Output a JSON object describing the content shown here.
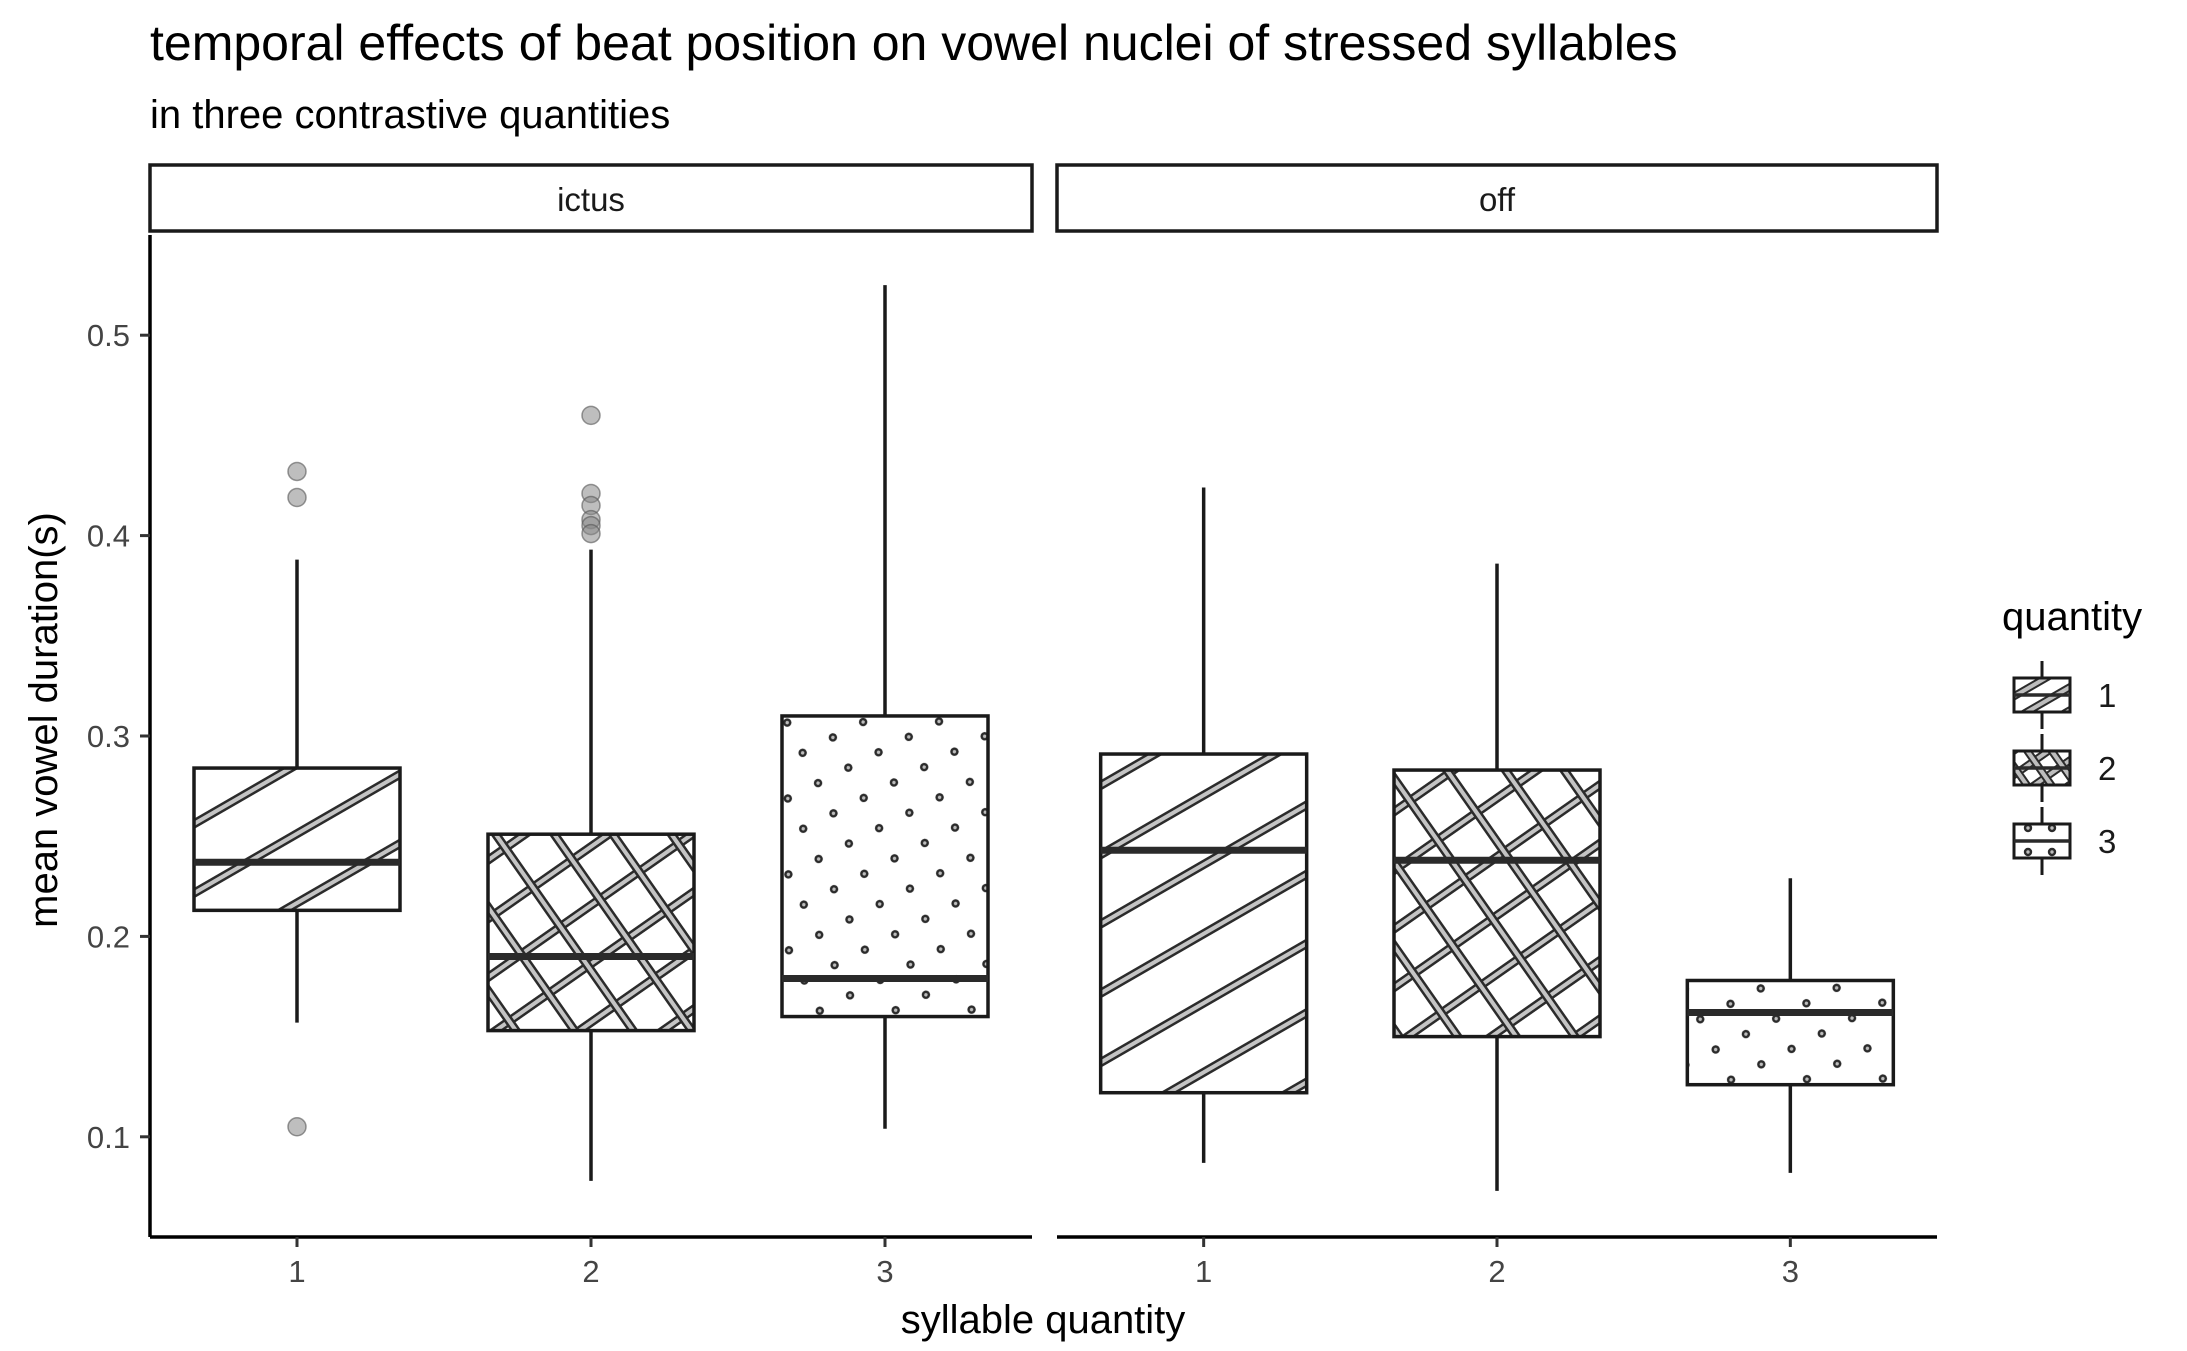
{
  "chart_data": {
    "type": "boxplot",
    "title": "temporal effects of beat position on vowel nuclei of stressed syllables",
    "subtitle": "in three contrastive quantities",
    "xlabel": "syllable quantity",
    "ylabel": "mean vowel duration(s)",
    "ylim": [
      0.05,
      0.55
    ],
    "y_ticks": [
      "0.1",
      "0.2",
      "0.3",
      "0.4",
      "0.5"
    ],
    "x_categories": [
      "1",
      "2",
      "3"
    ],
    "grid": false,
    "legend": {
      "title": "quantity",
      "position": "right",
      "entries": [
        {
          "label": "1",
          "pattern": "stripe-single"
        },
        {
          "label": "2",
          "pattern": "crosshatch"
        },
        {
          "label": "3",
          "pattern": "dots"
        }
      ]
    },
    "facets": [
      {
        "label": "ictus",
        "boxes": [
          {
            "x": "1",
            "pattern": "stripe-single",
            "min": 0.157,
            "q1": 0.213,
            "median": 0.237,
            "q3": 0.284,
            "max": 0.388,
            "outliers": [
              0.432,
              0.419,
              0.105
            ]
          },
          {
            "x": "2",
            "pattern": "crosshatch",
            "min": 0.078,
            "q1": 0.153,
            "median": 0.19,
            "q3": 0.251,
            "max": 0.393,
            "outliers": [
              0.46,
              0.421,
              0.415,
              0.408,
              0.405,
              0.401
            ]
          },
          {
            "x": "3",
            "pattern": "dots",
            "min": 0.104,
            "q1": 0.16,
            "median": 0.179,
            "q3": 0.31,
            "max": 0.525,
            "outliers": []
          }
        ]
      },
      {
        "label": "off",
        "boxes": [
          {
            "x": "1",
            "pattern": "stripe-single",
            "min": 0.087,
            "q1": 0.122,
            "median": 0.243,
            "q3": 0.291,
            "max": 0.424,
            "outliers": []
          },
          {
            "x": "2",
            "pattern": "crosshatch",
            "min": 0.073,
            "q1": 0.15,
            "median": 0.238,
            "q3": 0.283,
            "max": 0.386,
            "outliers": []
          },
          {
            "x": "3",
            "pattern": "dots",
            "min": 0.082,
            "q1": 0.126,
            "median": 0.162,
            "q3": 0.178,
            "max": 0.229,
            "outliers": []
          }
        ]
      }
    ]
  }
}
